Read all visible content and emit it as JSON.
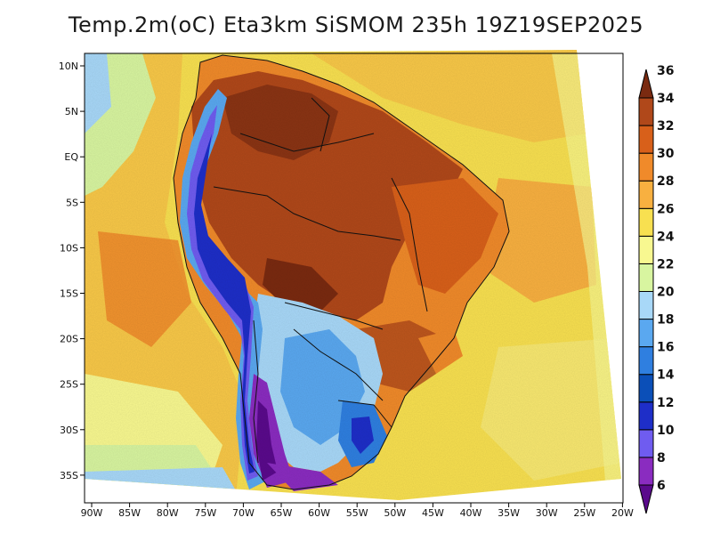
{
  "title": "Temp.2m(oC) Eta3km SiSMOM 235h 19Z19SEP2025",
  "lat_labels": [
    "10N",
    "5N",
    "EQ",
    "5S",
    "10S",
    "15S",
    "20S",
    "25S",
    "30S",
    "35S"
  ],
  "lon_labels": [
    "90W",
    "85W",
    "80W",
    "75W",
    "70W",
    "65W",
    "60W",
    "55W",
    "50W",
    "45W",
    "40W",
    "35W",
    "30W",
    "25W",
    "20W"
  ],
  "colorbar": {
    "levels": [
      "6",
      "8",
      "10",
      "12",
      "14",
      "16",
      "18",
      "20",
      "22",
      "24",
      "26",
      "28",
      "30",
      "32",
      "34",
      "36"
    ],
    "colors": [
      "#5a0a8c",
      "#8a2cc0",
      "#6f5cf0",
      "#1e2ec8",
      "#0b4fb8",
      "#2f7fe0",
      "#5aa8f0",
      "#a8d8f8",
      "#d8f5a0",
      "#f8f890",
      "#f8e050",
      "#f8b040",
      "#f08a2a",
      "#d8601a",
      "#b0481a",
      "#7a2a10"
    ]
  },
  "regions": {
    "tropical_interior": "32-34",
    "andes": "6-14",
    "patagonia": "6-10",
    "ocean_atlantic": "24-28",
    "ocean_pacific": "20-28"
  }
}
